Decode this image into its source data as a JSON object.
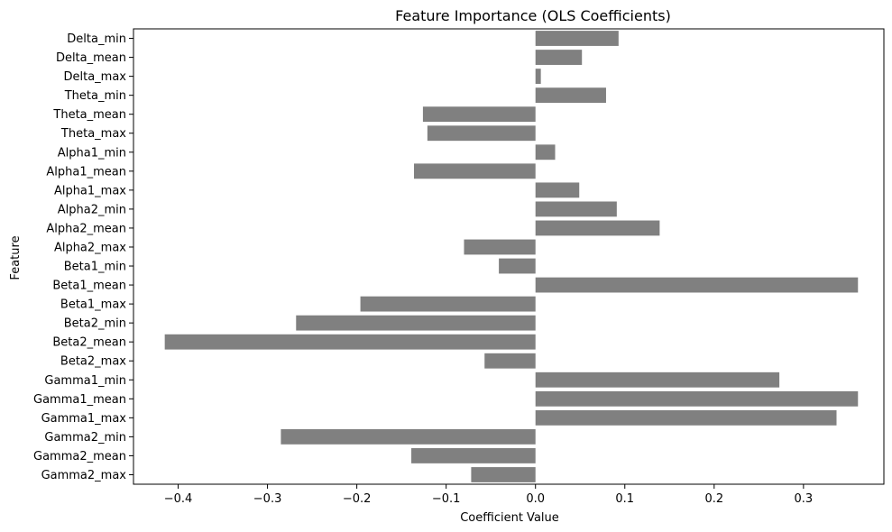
{
  "chart_data": {
    "type": "bar",
    "orientation": "horizontal",
    "title": "Feature Importance (OLS Coefficients)",
    "xlabel": "Coefficient Value",
    "ylabel": "Feature",
    "xlim": [
      -0.45,
      0.39
    ],
    "xticks": [
      -0.4,
      -0.3,
      -0.2,
      -0.1,
      0.0,
      0.1,
      0.2,
      0.3
    ],
    "xtick_labels": [
      "−0.4",
      "−0.3",
      "−0.2",
      "−0.1",
      "0.0",
      "0.1",
      "0.2",
      "0.3"
    ],
    "bar_color": "#808080",
    "grid": false,
    "categories": [
      "Delta_min",
      "Delta_mean",
      "Delta_max",
      "Theta_min",
      "Theta_mean",
      "Theta_max",
      "Alpha1_min",
      "Alpha1_mean",
      "Alpha1_max",
      "Alpha2_min",
      "Alpha2_mean",
      "Alpha2_max",
      "Beta1_min",
      "Beta1_mean",
      "Beta1_max",
      "Beta2_min",
      "Beta2_mean",
      "Beta2_max",
      "Gamma1_min",
      "Gamma1_mean",
      "Gamma1_max",
      "Gamma2_min",
      "Gamma2_mean",
      "Gamma2_max"
    ],
    "values": [
      0.093,
      0.052,
      0.006,
      0.079,
      -0.126,
      -0.121,
      0.022,
      -0.136,
      0.049,
      0.091,
      0.139,
      -0.08,
      -0.041,
      0.361,
      -0.196,
      -0.268,
      -0.415,
      -0.057,
      0.273,
      0.361,
      0.337,
      -0.285,
      -0.139,
      -0.072
    ]
  }
}
